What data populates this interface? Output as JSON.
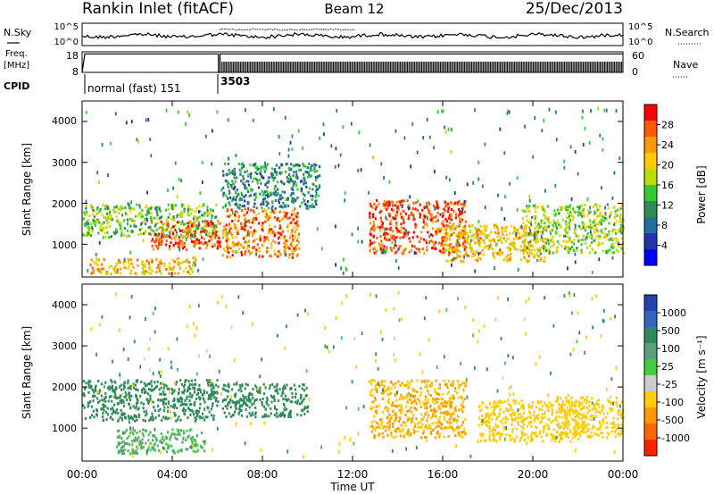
{
  "header": {
    "title": "Rankin Inlet (fitACF)",
    "beam": "Beam 12",
    "date": "25/Dec/2013"
  },
  "noise_panel": {
    "left_label": "N.Sky",
    "right_label": "N.Search",
    "left_ticks": [
      "10^5",
      "10^0"
    ],
    "right_ticks": [
      "10^5",
      "10^0"
    ]
  },
  "freq_panel": {
    "left_label_line1": "Freq.",
    "left_label_line2": "[MHz]",
    "left_ticks": [
      "18",
      "8"
    ],
    "right_label": "Nave",
    "right_ticks": [
      "60",
      "0"
    ]
  },
  "cpid": {
    "label": "CPID",
    "segments": [
      {
        "text": "normal (fast) 151",
        "start_hour": 0
      },
      {
        "text": "3503",
        "start_hour": 6.1
      }
    ]
  },
  "power_panel": {
    "ylabel": "Slant Range [km]",
    "yticks": [
      "4000",
      "3000",
      "2000",
      "1000"
    ],
    "colorbar_label": "Power [dB]",
    "colorbar_ticks": [
      "28",
      "24",
      "20",
      "16",
      "12",
      "8",
      "4"
    ],
    "colorbar_colors": [
      "#ff0000",
      "#ff5a00",
      "#ff9900",
      "#ffcc00",
      "#bbdd00",
      "#33cc33",
      "#2e8b57",
      "#1f6f9f",
      "#2233aa",
      "#0000ff"
    ]
  },
  "velocity_panel": {
    "ylabel": "Slant Range [km]",
    "yticks": [
      "4000",
      "3000",
      "2000",
      "1000"
    ],
    "colorbar_label": "Velocity [m s⁻¹]",
    "colorbar_ticks": [
      "1000",
      "500",
      "100",
      "25",
      "-25",
      "-100",
      "-500",
      "-1000"
    ],
    "colorbar_colors": [
      "#2244aa",
      "#3366bb",
      "#2e8b57",
      "#5aa07a",
      "#44cc44",
      "#cccccc",
      "#ffcc00",
      "#ff9900",
      "#ff6600",
      "#ff2200"
    ]
  },
  "xaxis": {
    "label": "Time UT",
    "ticks": [
      "00:00",
      "04:00",
      "08:00",
      "12:00",
      "16:00",
      "20:00",
      "00:00"
    ]
  },
  "chart_data": {
    "type": "heatmap",
    "title": "Rankin Inlet (fitACF)",
    "subtitle": "Beam 12",
    "date": "25/Dec/2013",
    "xlabel": "Time UT",
    "ylabel": "Slant Range [km]",
    "xlim_hours": [
      0,
      24
    ],
    "ylim_km": [
      200,
      4500
    ],
    "power_range_db": [
      0,
      30
    ],
    "velocity_range_ms": [
      -1000,
      1000
    ],
    "frequency_mhz_range": [
      8,
      18
    ],
    "nave_range": [
      0,
      60
    ],
    "power_regions": [
      {
        "t0": 0.0,
        "t1": 6.0,
        "r0": 1200,
        "r1": 2000,
        "db": 14
      },
      {
        "t0": 3.0,
        "t1": 6.1,
        "r0": 900,
        "r1": 1600,
        "db": 26
      },
      {
        "t0": 0.3,
        "t1": 5.0,
        "r0": 300,
        "r1": 700,
        "db": 20
      },
      {
        "t0": 6.2,
        "t1": 9.6,
        "r0": 700,
        "r1": 1900,
        "db": 24
      },
      {
        "t0": 6.2,
        "t1": 10.5,
        "r0": 1900,
        "r1": 3000,
        "db": 10
      },
      {
        "t0": 12.7,
        "t1": 17.0,
        "r0": 800,
        "r1": 2100,
        "db": 26
      },
      {
        "t0": 16.0,
        "t1": 20.5,
        "r0": 600,
        "r1": 1500,
        "db": 20
      },
      {
        "t0": 19.5,
        "t1": 24.0,
        "r0": 800,
        "r1": 2000,
        "db": 16
      }
    ],
    "velocity_regions": [
      {
        "t0": 0.0,
        "t1": 6.0,
        "r0": 1200,
        "r1": 2200,
        "v": 100
      },
      {
        "t0": 1.5,
        "t1": 5.5,
        "r0": 400,
        "r1": 1000,
        "v": 25
      },
      {
        "t0": 6.2,
        "t1": 10.0,
        "r0": 1300,
        "r1": 2100,
        "v": 100
      },
      {
        "t0": 12.7,
        "t1": 17.0,
        "r0": 800,
        "r1": 2200,
        "v": -300
      },
      {
        "t0": 17.5,
        "t1": 22.0,
        "r0": 700,
        "r1": 1700,
        "v": -200
      },
      {
        "t0": 21.0,
        "t1": 24.0,
        "r0": 800,
        "r1": 1800,
        "v": -150
      }
    ]
  }
}
